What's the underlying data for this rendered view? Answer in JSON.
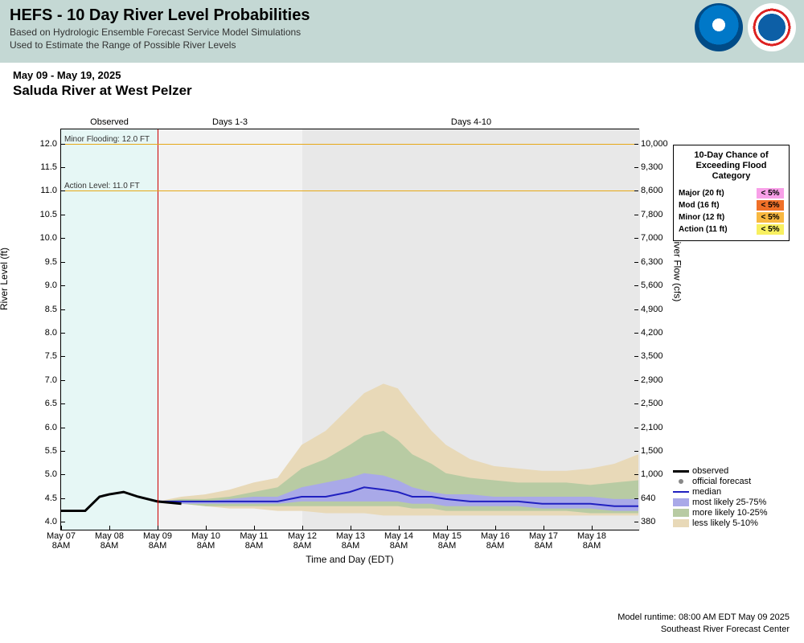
{
  "header": {
    "title": "HEFS - 10 Day River Level Probabilities",
    "subtitle1": "Based on Hydrologic Ensemble Forecast Service Model Simulations",
    "subtitle2": "Used to Estimate the Range of Possible River Levels"
  },
  "meta": {
    "date_range": "May 09 - May 19, 2025",
    "station": "Saluda River at West Pelzer"
  },
  "chart": {
    "type": "probability-band-line",
    "x_axis": {
      "label": "Time and Day (EDT)",
      "ticks": [
        "May 07\n8AM",
        "May 08\n8AM",
        "May 09\n8AM",
        "May 10\n8AM",
        "May 11\n8AM",
        "May 12\n8AM",
        "May 13\n8AM",
        "May 14\n8AM",
        "May 15\n8AM",
        "May 16\n8AM",
        "May 17\n8AM",
        "May 18\n8AM"
      ],
      "domain_days": 12,
      "now_day_index": 2,
      "regions": [
        {
          "label": "Observed",
          "start": 0,
          "end": 2,
          "color": "#e6f7f5"
        },
        {
          "label": "Days 1-3",
          "start": 2,
          "end": 5,
          "color": "#f2f2f2"
        },
        {
          "label": "Days 4-10",
          "start": 5,
          "end": 12,
          "color": "#e8e8e8"
        }
      ]
    },
    "y_left": {
      "label": "River Level (ft)",
      "min": 3.8,
      "max": 12.3,
      "ticks": [
        4.0,
        4.5,
        5.0,
        5.5,
        6.0,
        6.5,
        7.0,
        7.5,
        8.0,
        8.5,
        9.0,
        9.5,
        10.0,
        10.5,
        11.0,
        11.5,
        12.0
      ]
    },
    "y_right": {
      "label": "River Flow (cfs)",
      "ticks": [
        {
          "v": 4.0,
          "label": "380"
        },
        {
          "v": 4.5,
          "label": "640"
        },
        {
          "v": 5.0,
          "label": "1,000"
        },
        {
          "v": 5.5,
          "label": "1,500"
        },
        {
          "v": 6.0,
          "label": "2,100"
        },
        {
          "v": 6.5,
          "label": "2,500"
        },
        {
          "v": 7.0,
          "label": "2,900"
        },
        {
          "v": 7.5,
          "label": "3,500"
        },
        {
          "v": 8.0,
          "label": "4,200"
        },
        {
          "v": 8.5,
          "label": "4,900"
        },
        {
          "v": 9.0,
          "label": "5,600"
        },
        {
          "v": 9.5,
          "label": "6,300"
        },
        {
          "v": 10.0,
          "label": "7,000"
        },
        {
          "v": 10.5,
          "label": "7,800"
        },
        {
          "v": 11.0,
          "label": "8,600"
        },
        {
          "v": 11.5,
          "label": "9,300"
        },
        {
          "v": 12.0,
          "label": "10,000"
        }
      ]
    },
    "reference_lines": [
      {
        "label": "Minor Flooding: 12.0 FT",
        "value": 12.0,
        "color": "#e6a817"
      },
      {
        "label": "Action Level: 11.0 FT",
        "value": 11.0,
        "color": "#e6a817"
      }
    ],
    "bands": {
      "outer": {
        "color": "#e8d9b8",
        "label": "less likely 5-10%"
      },
      "mid": {
        "color": "#b8cba3",
        "label": "more likely 10-25%"
      },
      "inner": {
        "color": "#a9a9e8",
        "label": "most likely 25-75%"
      }
    },
    "median": {
      "color": "#2020c0",
      "width": 2,
      "label": "median"
    },
    "observed": {
      "color": "#000000",
      "width": 3,
      "label": "observed"
    },
    "official": {
      "label": "official forecast"
    },
    "series": {
      "x": [
        0.0,
        0.5,
        0.8,
        1.0,
        1.3,
        1.6,
        2.0,
        2.5,
        3.0,
        3.5,
        4.0,
        4.5,
        5.0,
        5.5,
        6.0,
        6.3,
        6.7,
        7.0,
        7.3,
        7.7,
        8.0,
        8.5,
        9.0,
        9.5,
        10.0,
        10.5,
        11.0,
        11.5,
        12.0
      ],
      "observed": [
        4.2,
        4.2,
        4.5,
        4.55,
        4.6,
        4.5,
        4.4,
        4.35
      ],
      "p05": [
        4.2,
        4.2,
        4.5,
        4.55,
        4.6,
        4.5,
        4.4,
        4.35,
        4.3,
        4.25,
        4.25,
        4.2,
        4.2,
        4.15,
        4.15,
        4.15,
        4.1,
        4.1,
        4.1,
        4.1,
        4.1,
        4.1,
        4.1,
        4.1,
        4.1,
        4.1,
        4.1,
        4.1,
        4.1
      ],
      "p10": [
        4.2,
        4.2,
        4.5,
        4.55,
        4.6,
        4.5,
        4.4,
        4.35,
        4.3,
        4.3,
        4.3,
        4.3,
        4.3,
        4.3,
        4.3,
        4.3,
        4.3,
        4.3,
        4.25,
        4.25,
        4.2,
        4.2,
        4.2,
        4.2,
        4.2,
        4.2,
        4.15,
        4.15,
        4.15
      ],
      "p25": [
        4.2,
        4.2,
        4.5,
        4.55,
        4.6,
        4.5,
        4.4,
        4.35,
        4.35,
        4.35,
        4.35,
        4.35,
        4.4,
        4.4,
        4.4,
        4.4,
        4.4,
        4.4,
        4.35,
        4.35,
        4.3,
        4.3,
        4.3,
        4.3,
        4.25,
        4.25,
        4.25,
        4.2,
        4.2
      ],
      "median": [
        4.2,
        4.2,
        4.5,
        4.55,
        4.6,
        4.5,
        4.4,
        4.4,
        4.4,
        4.4,
        4.4,
        4.4,
        4.5,
        4.5,
        4.6,
        4.7,
        4.65,
        4.6,
        4.5,
        4.5,
        4.45,
        4.4,
        4.4,
        4.4,
        4.35,
        4.35,
        4.35,
        4.3,
        4.3
      ],
      "p75": [
        4.2,
        4.2,
        4.5,
        4.55,
        4.6,
        4.5,
        4.4,
        4.4,
        4.4,
        4.45,
        4.5,
        4.5,
        4.7,
        4.8,
        4.9,
        5.0,
        4.95,
        4.85,
        4.7,
        4.6,
        4.55,
        4.55,
        4.5,
        4.5,
        4.5,
        4.5,
        4.5,
        4.45,
        4.45
      ],
      "p90": [
        4.2,
        4.2,
        4.5,
        4.55,
        4.6,
        4.5,
        4.4,
        4.45,
        4.45,
        4.5,
        4.6,
        4.7,
        5.1,
        5.3,
        5.6,
        5.8,
        5.9,
        5.7,
        5.4,
        5.2,
        5.0,
        4.9,
        4.85,
        4.8,
        4.8,
        4.8,
        4.75,
        4.8,
        4.85
      ],
      "p95": [
        4.2,
        4.2,
        4.5,
        4.55,
        4.6,
        4.5,
        4.4,
        4.5,
        4.55,
        4.65,
        4.8,
        4.9,
        5.6,
        5.9,
        6.4,
        6.7,
        6.9,
        6.8,
        6.4,
        5.9,
        5.6,
        5.3,
        5.15,
        5.1,
        5.05,
        5.05,
        5.1,
        5.2,
        5.4
      ]
    }
  },
  "palette": {
    "title": "10-Day Chance of Exceeding Flood Category",
    "rows": [
      {
        "name": "Major (20 ft)",
        "pct": "< 5%",
        "bg": "#f8a0e8"
      },
      {
        "name": "Mod (16 ft)",
        "pct": "< 5%",
        "bg": "#f07028"
      },
      {
        "name": "Minor (12 ft)",
        "pct": "< 5%",
        "bg": "#f8b840"
      },
      {
        "name": "Action (11 ft)",
        "pct": "< 5%",
        "bg": "#f8f060"
      }
    ]
  },
  "footer": {
    "runtime": "Model runtime:  08:00 AM EDT May 09 2025",
    "center": "Southeast River Forecast Center"
  }
}
